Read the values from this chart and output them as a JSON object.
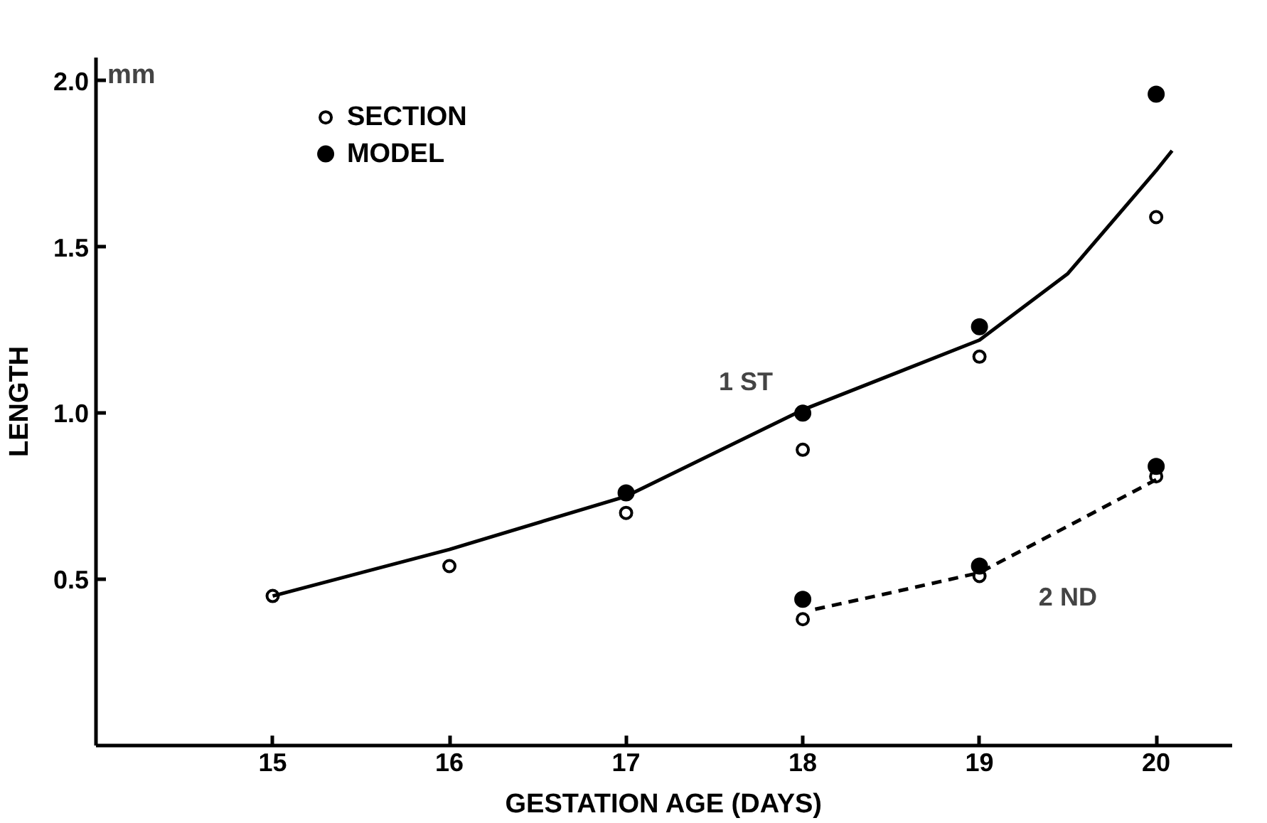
{
  "chart_data": {
    "type": "scatter",
    "xlabel": "GESTATION AGE (DAYS)",
    "ylabel": "LENGTH",
    "annotations": [
      "mm"
    ],
    "xlim": [
      14.0,
      20.43
    ],
    "xticks": [
      15,
      16,
      17,
      18,
      19,
      20
    ],
    "ylim": [
      0,
      2.07
    ],
    "yticks": [
      0.5,
      {
        "value": 1.0,
        "label": "1.0"
      },
      1.5,
      {
        "value": 2.0,
        "label": "2.0"
      }
    ],
    "grid": false,
    "legend": "top left",
    "series": [
      {
        "name": "SECTION",
        "marker": "circle",
        "color": "#ffffff",
        "x": [
          15,
          16,
          17,
          18,
          19,
          20,
          18,
          19,
          20
        ],
        "values": [
          0.45,
          0.54,
          0.7,
          0.89,
          1.17,
          1.59,
          0.38,
          0.51,
          0.81
        ]
      },
      {
        "name": "MODEL",
        "marker": "circle",
        "color": "#000000",
        "x": [
          17,
          18,
          19,
          20,
          18,
          19,
          20
        ],
        "values": [
          0.76,
          1.0,
          1.26,
          1.96,
          0.44,
          0.54,
          0.84
        ]
      },
      {
        "name": "1 ST",
        "type": "line",
        "line_style": "solid",
        "marker": "none",
        "color": "#000000",
        "x": [
          15,
          16,
          17,
          18,
          19,
          19.5,
          20,
          20.09
        ],
        "values": [
          0.45,
          0.59,
          0.75,
          1.01,
          1.22,
          1.42,
          1.73,
          1.79
        ]
      },
      {
        "name": "2 ND",
        "type": "line",
        "line_style": "dashed",
        "marker": "none",
        "color": "#000000",
        "x": [
          18.07,
          18.5,
          19,
          19.5,
          20
        ],
        "values": [
          0.41,
          0.46,
          0.52,
          0.66,
          0.8
        ]
      }
    ]
  }
}
